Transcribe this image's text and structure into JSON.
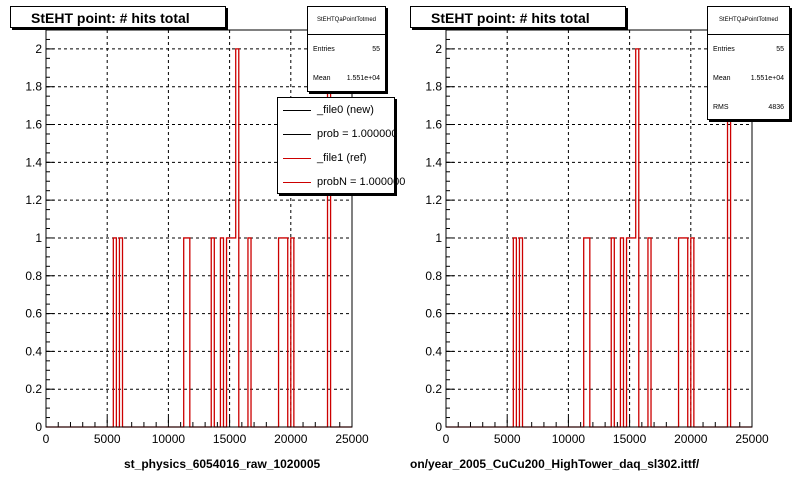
{
  "colors": {
    "ref": "#cc0000",
    "new": "#000000",
    "frame": "#000000"
  },
  "chart_data": [
    {
      "type": "histogram",
      "title": "StEHT point: # hits total",
      "xlabel": "st_physics_6054016_raw_1020005",
      "xlim": [
        0,
        25000
      ],
      "ylim": [
        0,
        2.1
      ],
      "x_ticks": [
        "0",
        "5000",
        "10000",
        "15000",
        "20000",
        "25000"
      ],
      "y_ticks": [
        "0",
        "0.2",
        "0.4",
        "0.6",
        "0.8",
        "1",
        "1.2",
        "1.4",
        "1.6",
        "1.8",
        "2"
      ],
      "grid": true,
      "series": [
        {
          "name": "_file1 (ref)",
          "color": "#cc0000",
          "bins": [
            [
              5600,
              1
            ],
            [
              5900,
              1
            ],
            [
              11200,
              1
            ],
            [
              11600,
              1
            ],
            [
              13600,
              1
            ],
            [
              14300,
              1
            ],
            [
              14700,
              1
            ],
            [
              15000,
              1
            ],
            [
              15200,
              1
            ],
            [
              15400,
              2
            ],
            [
              16400,
              1
            ],
            [
              19000,
              1
            ],
            [
              19300,
              1
            ],
            [
              19600,
              1
            ],
            [
              20000,
              1
            ],
            [
              23100,
              2
            ]
          ]
        }
      ],
      "stats": {
        "title": "StEHTQaPointTotmed",
        "rows": [
          {
            "label": "Entries",
            "value": "55"
          },
          {
            "label": "Mean",
            "value": "1.551e+04"
          }
        ]
      },
      "legend": [
        {
          "label": "_file0 (new)",
          "color": "#000000"
        },
        {
          "label": "prob = 1.000000",
          "color": "#000000"
        },
        {
          "label": "_file1 (ref)",
          "color": "#cc0000"
        },
        {
          "label": "probN = 1.000000",
          "color": "#cc0000"
        }
      ]
    },
    {
      "type": "histogram",
      "title": "StEHT point: # hits total",
      "xlabel": "on/year_2005_CuCu200_HighTower_daq_sl302.ittf/",
      "xlim": [
        0,
        25000
      ],
      "ylim": [
        0,
        2.1
      ],
      "x_ticks": [
        "0",
        "5000",
        "10000",
        "15000",
        "20000",
        "25000"
      ],
      "y_ticks": [
        "0",
        "0.2",
        "0.4",
        "0.6",
        "0.8",
        "1",
        "1.2",
        "1.4",
        "1.6",
        "1.8",
        "2"
      ],
      "grid": true,
      "series": [
        {
          "name": "",
          "color": "#cc0000",
          "bins": [
            [
              5600,
              1
            ],
            [
              5900,
              1
            ],
            [
              11200,
              1
            ],
            [
              11600,
              1
            ],
            [
              13600,
              1
            ],
            [
              14300,
              1
            ],
            [
              14700,
              1
            ],
            [
              15000,
              1
            ],
            [
              15200,
              1
            ],
            [
              15400,
              2
            ],
            [
              16400,
              1
            ],
            [
              19000,
              1
            ],
            [
              19300,
              1
            ],
            [
              19600,
              1
            ],
            [
              20000,
              1
            ],
            [
              23100,
              2
            ]
          ]
        }
      ],
      "stats": {
        "title": "StEHTQaPointTotmed",
        "rows": [
          {
            "label": "Entries",
            "value": "55"
          },
          {
            "label": "Mean",
            "value": "1.551e+04"
          },
          {
            "label": "RMS",
            "value": "4836"
          }
        ]
      }
    }
  ]
}
